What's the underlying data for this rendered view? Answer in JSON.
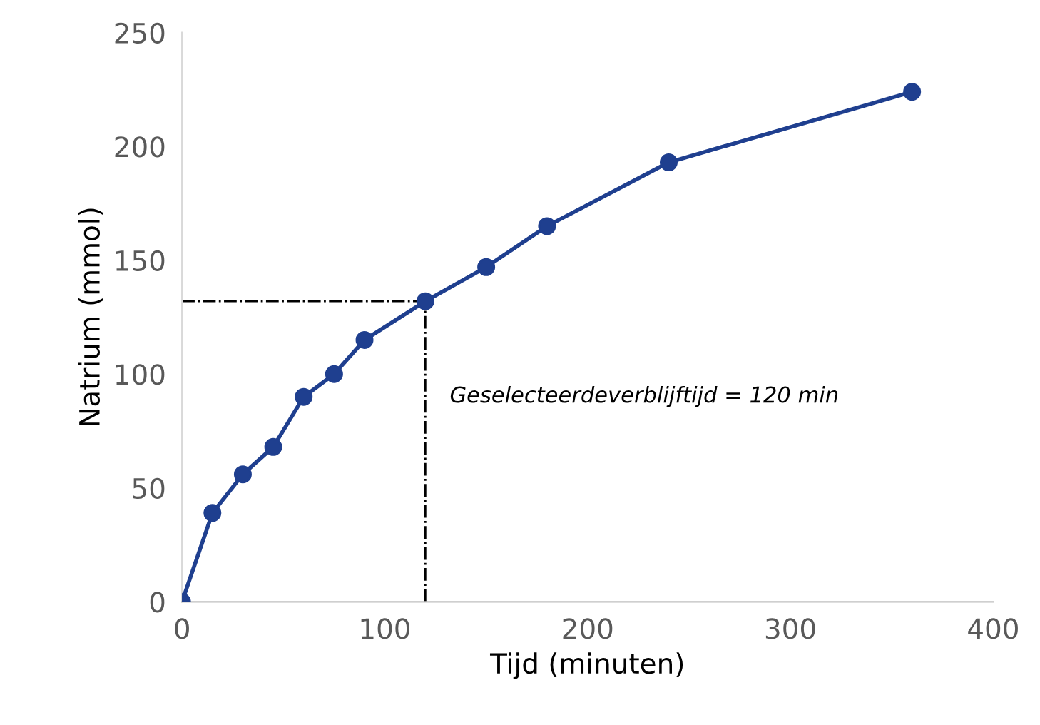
{
  "chart_data": {
    "type": "line",
    "xlabel": "Tijd (minuten)",
    "ylabel": "Natrium (mmol)",
    "x": [
      0,
      15,
      30,
      45,
      60,
      75,
      90,
      120,
      150,
      180,
      240,
      360
    ],
    "series": [
      {
        "color": "#1f3f8f",
        "values": [
          0,
          39,
          56,
          68,
          90,
          100,
          115,
          132,
          147,
          165,
          193,
          224
        ]
      }
    ],
    "xlim": [
      0,
      400
    ],
    "xticks": [
      0,
      100,
      200,
      300,
      400
    ],
    "ylim": [
      0,
      250
    ],
    "yticks": [
      0,
      50,
      100,
      150,
      200,
      250
    ],
    "grid": false,
    "marker": "circle",
    "line_style": "solid",
    "ref_lines": [
      {
        "axis": "y",
        "value": 132,
        "color": "#000000",
        "line_style": "dashdot"
      },
      {
        "axis": "x",
        "value": 120,
        "color": "#000000",
        "line_style": "dashdot"
      }
    ],
    "annotations": [
      "Geselecteerdeverblijftijd = 120 min"
    ]
  }
}
